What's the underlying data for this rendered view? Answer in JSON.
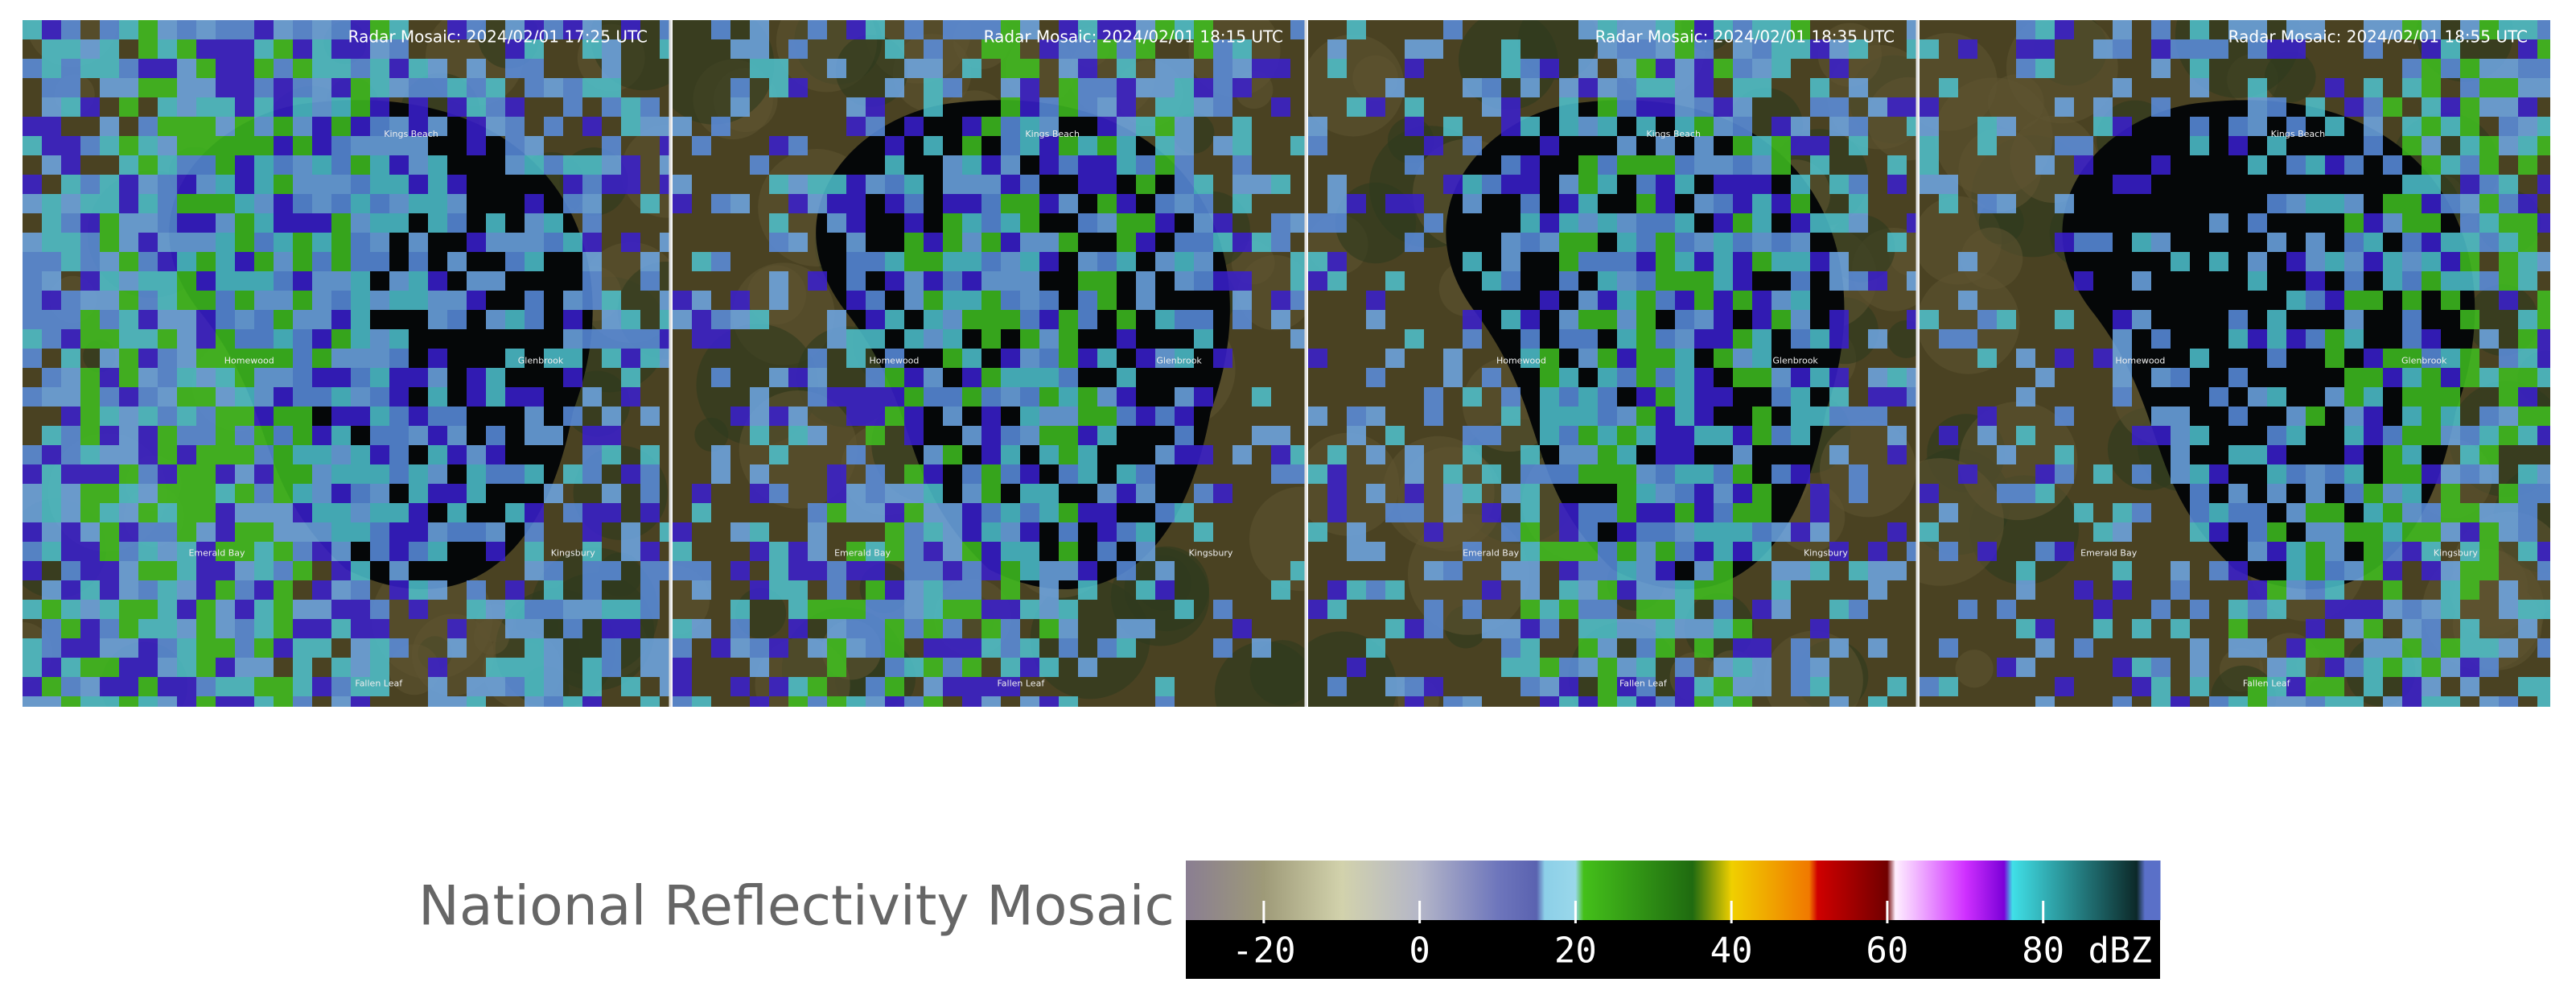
{
  "panels": [
    {
      "title": "Radar Mosaic: 2024/02/01 17:25 UTC"
    },
    {
      "title": "Radar Mosaic: 2024/02/01 18:15 UTC"
    },
    {
      "title": "Radar Mosaic: 2024/02/01 18:35 UTC"
    },
    {
      "title": "Radar Mosaic: 2024/02/01 18:55 UTC"
    }
  ],
  "places": [
    "Kings Beach",
    "Homewood",
    "Emerald Bay",
    "Glenbrook",
    "Kingsbury",
    "Fallen Leaf"
  ],
  "legend": {
    "title": "National Reflectivity Mosaic",
    "unit": "dBZ",
    "range": [
      -30,
      95
    ],
    "ticks": [
      -20,
      0,
      20,
      40,
      60,
      80
    ],
    "stops": [
      {
        "value": -30,
        "color": "#8a7e92"
      },
      {
        "value": -20,
        "color": "#9e9a78"
      },
      {
        "value": -10,
        "color": "#d2d2ac"
      },
      {
        "value": 0,
        "color": "#b4b6c8"
      },
      {
        "value": 10,
        "color": "#6e76bc"
      },
      {
        "value": 15,
        "color": "#5a62b0"
      },
      {
        "value": 16,
        "color": "#8ccfe8"
      },
      {
        "value": 20,
        "color": "#9ad8ea"
      },
      {
        "value": 21,
        "color": "#44c01a"
      },
      {
        "value": 35,
        "color": "#1f6a10"
      },
      {
        "value": 40,
        "color": "#f0d000"
      },
      {
        "value": 50,
        "color": "#f07800"
      },
      {
        "value": 51,
        "color": "#d00000"
      },
      {
        "value": 60,
        "color": "#700000"
      },
      {
        "value": 61,
        "color": "#fff0ff"
      },
      {
        "value": 70,
        "color": "#d030ff"
      },
      {
        "value": 75,
        "color": "#7a00d8"
      },
      {
        "value": 76,
        "color": "#40e0e8"
      },
      {
        "value": 92,
        "color": "#0c2828"
      },
      {
        "value": 93,
        "color": "#5a70c8"
      },
      {
        "value": 95,
        "color": "#5a70c8"
      }
    ]
  }
}
